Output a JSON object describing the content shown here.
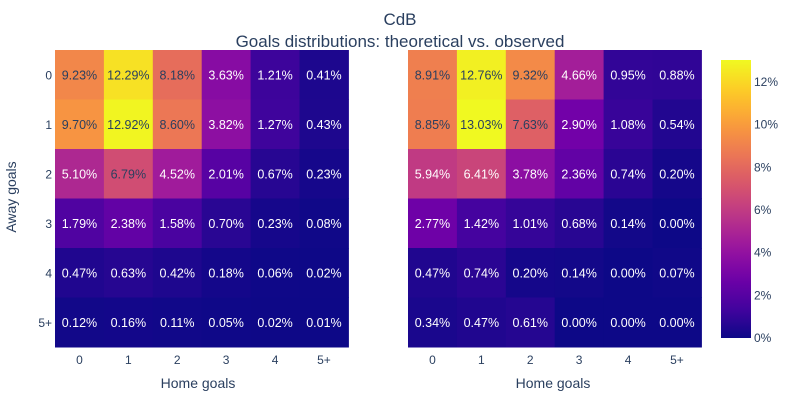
{
  "chart_data": {
    "type": "heatmap",
    "title": "CdB",
    "subtitle": "Goals distributions: theoretical vs. observed",
    "ylabel": "Away goals",
    "xlabel": "Home goals",
    "x_categories": [
      "0",
      "1",
      "2",
      "3",
      "4",
      "5+"
    ],
    "y_categories": [
      "0",
      "1",
      "2",
      "3",
      "4",
      "5+"
    ],
    "color_range": [
      0,
      13.03
    ],
    "colorbar_ticks": [
      "0%",
      "2%",
      "4%",
      "6%",
      "8%",
      "10%",
      "12%"
    ],
    "colorbar_tick_values": [
      0,
      2,
      4,
      6,
      8,
      10,
      12
    ],
    "colorscale": "plasma",
    "panels": [
      {
        "values": [
          [
            9.23,
            12.29,
            8.18,
            3.63,
            1.21,
            0.41
          ],
          [
            9.7,
            12.92,
            8.6,
            3.82,
            1.27,
            0.43
          ],
          [
            5.1,
            6.79,
            4.52,
            2.01,
            0.67,
            0.23
          ],
          [
            1.79,
            2.38,
            1.58,
            0.7,
            0.23,
            0.08
          ],
          [
            0.47,
            0.63,
            0.42,
            0.18,
            0.06,
            0.02
          ],
          [
            0.12,
            0.16,
            0.11,
            0.05,
            0.02,
            0.01
          ]
        ],
        "labels": [
          [
            "9.23%",
            "12.29%",
            "8.18%",
            "3.63%",
            "1.21%",
            "0.41%"
          ],
          [
            "9.70%",
            "12.92%",
            "8.60%",
            "3.82%",
            "1.27%",
            "0.43%"
          ],
          [
            "5.10%",
            "6.79%",
            "4.52%",
            "2.01%",
            "0.67%",
            "0.23%"
          ],
          [
            "1.79%",
            "2.38%",
            "1.58%",
            "0.70%",
            "0.23%",
            "0.08%"
          ],
          [
            "0.47%",
            "0.63%",
            "0.42%",
            "0.18%",
            "0.06%",
            "0.02%"
          ],
          [
            "0.12%",
            "0.16%",
            "0.11%",
            "0.05%",
            "0.02%",
            "0.01%"
          ]
        ]
      },
      {
        "values": [
          [
            8.91,
            12.76,
            9.32,
            4.66,
            0.95,
            0.88
          ],
          [
            8.85,
            13.03,
            7.63,
            2.9,
            1.08,
            0.54
          ],
          [
            5.94,
            6.41,
            3.78,
            2.36,
            0.74,
            0.2
          ],
          [
            2.77,
            1.42,
            1.01,
            0.68,
            0.14,
            0.0
          ],
          [
            0.47,
            0.74,
            0.2,
            0.14,
            0.0,
            0.07
          ],
          [
            0.34,
            0.47,
            0.61,
            0.0,
            0.0,
            0.0
          ]
        ],
        "labels": [
          [
            "8.91%",
            "12.76%",
            "9.32%",
            "4.66%",
            "0.95%",
            "0.88%"
          ],
          [
            "8.85%",
            "13.03%",
            "7.63%",
            "2.90%",
            "1.08%",
            "0.54%"
          ],
          [
            "5.94%",
            "6.41%",
            "3.78%",
            "2.36%",
            "0.74%",
            "0.20%"
          ],
          [
            "2.77%",
            "1.42%",
            "1.01%",
            "0.68%",
            "0.14%",
            "0.00%"
          ],
          [
            "0.47%",
            "0.74%",
            "0.20%",
            "0.14%",
            "0.00%",
            "0.07%"
          ],
          [
            "0.34%",
            "0.47%",
            "0.61%",
            "0.00%",
            "0.00%",
            "0.00%"
          ]
        ]
      }
    ]
  }
}
